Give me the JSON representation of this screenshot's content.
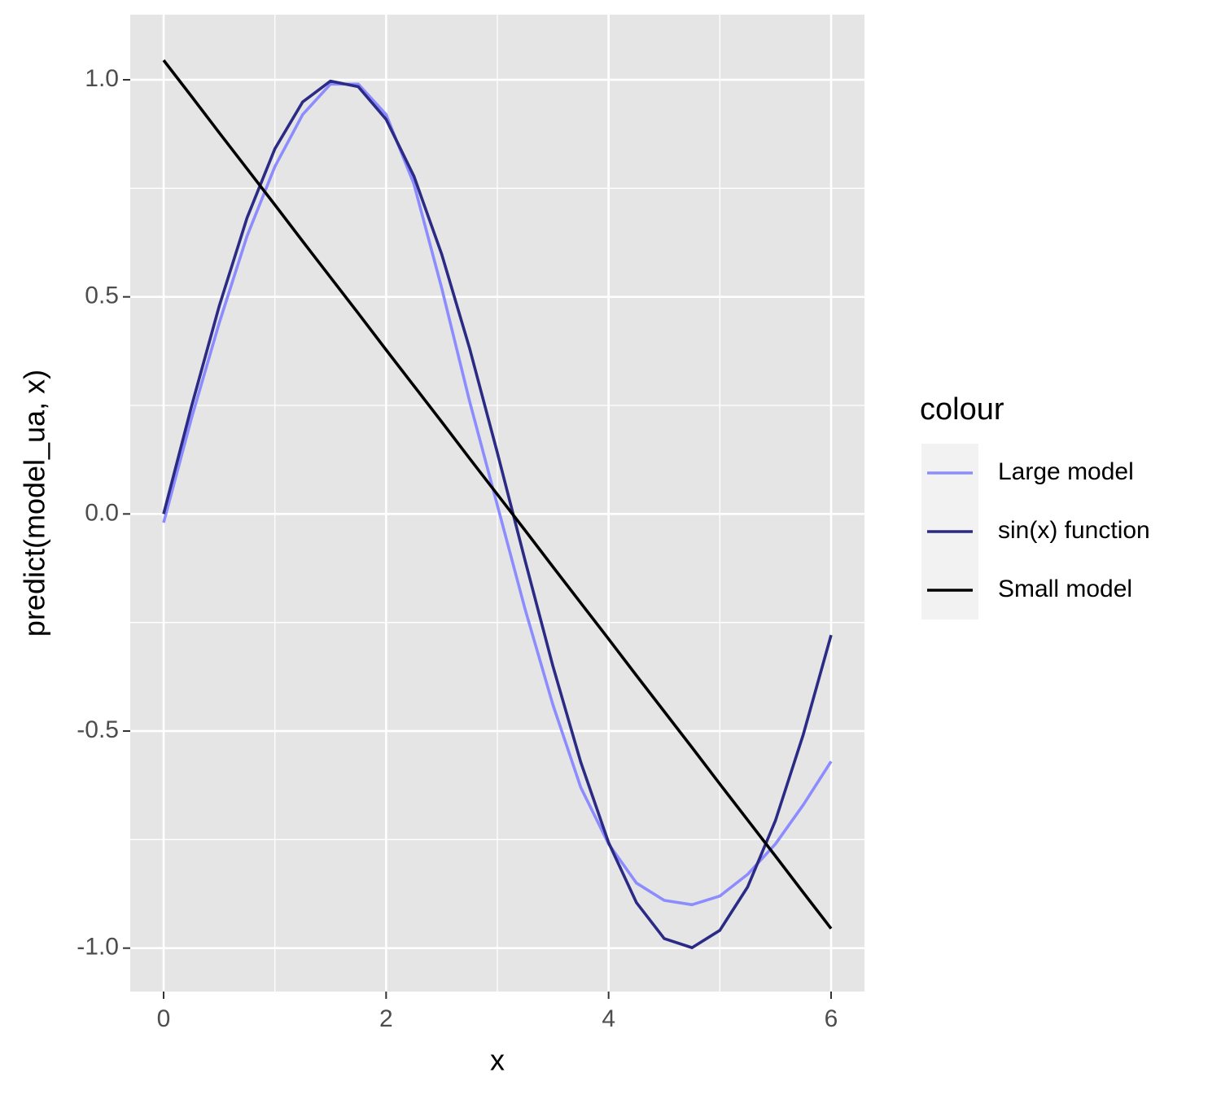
{
  "chart_data": {
    "type": "line",
    "x_label": "x",
    "y_label": "predict(model_ua, x)",
    "legend_title": "colour",
    "legend_position": "right",
    "grid": true,
    "panel_color": "#e5e5e5",
    "xlim": [
      -0.3,
      6.3
    ],
    "ylim": [
      -1.1,
      1.15
    ],
    "xticks": [
      0,
      2,
      4,
      6
    ],
    "yticks": [
      {
        "value": -1,
        "label": "-1.0"
      },
      {
        "value": -0.5,
        "label": "-0.5"
      },
      {
        "value": 0,
        "label": "0.0"
      },
      {
        "value": 0.5,
        "label": "0.5"
      },
      {
        "value": 1,
        "label": "1.0"
      }
    ],
    "minor_xticks": [
      1,
      3,
      5
    ],
    "minor_yticks": [
      -0.75,
      -0.25,
      0.25,
      0.75
    ],
    "x": [
      0,
      0.25,
      0.5,
      0.75,
      1,
      1.25,
      1.5,
      1.75,
      2,
      2.25,
      2.5,
      2.75,
      3,
      3.25,
      3.5,
      3.75,
      4,
      4.25,
      4.5,
      4.75,
      5,
      5.25,
      5.5,
      5.75,
      6
    ],
    "series": [
      {
        "name": "Large model",
        "color": "#8c8cff",
        "values": [
          -0.02,
          0.22,
          0.44,
          0.64,
          0.8,
          0.92,
          0.99,
          0.99,
          0.92,
          0.76,
          0.52,
          0.26,
          0.02,
          -0.22,
          -0.44,
          -0.63,
          -0.76,
          -0.85,
          -0.89,
          -0.9,
          -0.88,
          -0.83,
          -0.76,
          -0.67,
          -0.57
        ]
      },
      {
        "name": "sin(x) function",
        "color": "#2b2b85",
        "values": [
          0,
          0.247,
          0.479,
          0.682,
          0.841,
          0.949,
          0.997,
          0.984,
          0.909,
          0.778,
          0.598,
          0.382,
          0.141,
          -0.108,
          -0.351,
          -0.572,
          -0.757,
          -0.895,
          -0.978,
          -0.999,
          -0.959,
          -0.859,
          -0.706,
          -0.508,
          -0.279
        ]
      },
      {
        "name": "Small model",
        "color": "#000000",
        "values": [
          1.045,
          0.962,
          0.878,
          0.795,
          0.712,
          0.628,
          0.545,
          0.462,
          0.378,
          0.295,
          0.212,
          0.128,
          0.045,
          -0.038,
          -0.122,
          -0.205,
          -0.288,
          -0.372,
          -0.455,
          -0.538,
          -0.622,
          -0.705,
          -0.788,
          -0.872,
          -0.955
        ]
      }
    ]
  }
}
